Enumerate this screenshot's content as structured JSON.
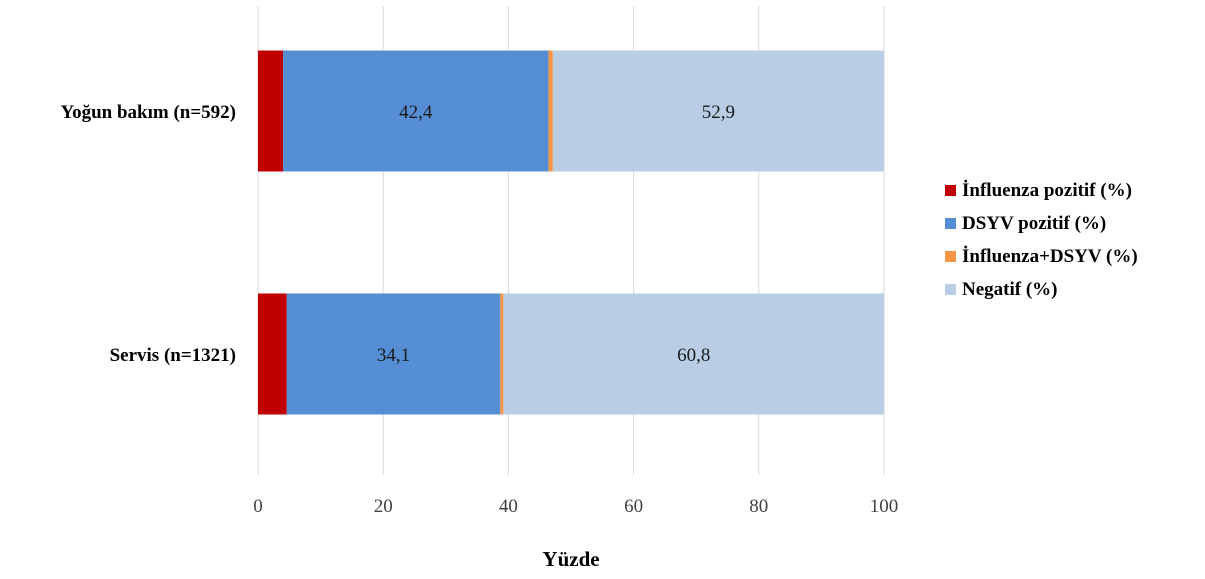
{
  "chart_data": {
    "type": "bar",
    "orientation": "horizontal",
    "stacked": true,
    "categories": [
      "Yoğun bakım (n=592)",
      "Servis (n=1321)"
    ],
    "series": [
      {
        "name": "İnfluenza pozitif (%)",
        "values": [
          4.0,
          4.6
        ],
        "color": "#c00000",
        "labels": [
          "",
          ""
        ]
      },
      {
        "name": "DSYV pozitif (%)",
        "values": [
          42.4,
          34.1
        ],
        "color": "#558ed5",
        "labels": [
          "42,4",
          "34,1"
        ]
      },
      {
        "name": "İnfluenza+DSYV (%)",
        "values": [
          0.7,
          0.5
        ],
        "color": "#f79646",
        "labels": [
          "",
          ""
        ]
      },
      {
        "name": "Negatif (%)",
        "values": [
          52.9,
          60.8
        ],
        "color": "#b9cde5",
        "labels": [
          "52,9",
          "60,8"
        ]
      }
    ],
    "xlabel": "Yüzde",
    "ylabel": "",
    "xlim": [
      0,
      100
    ],
    "xticks": [
      "0",
      "20",
      "40",
      "60",
      "80",
      "100"
    ],
    "grid": true,
    "legend_position": "right"
  }
}
